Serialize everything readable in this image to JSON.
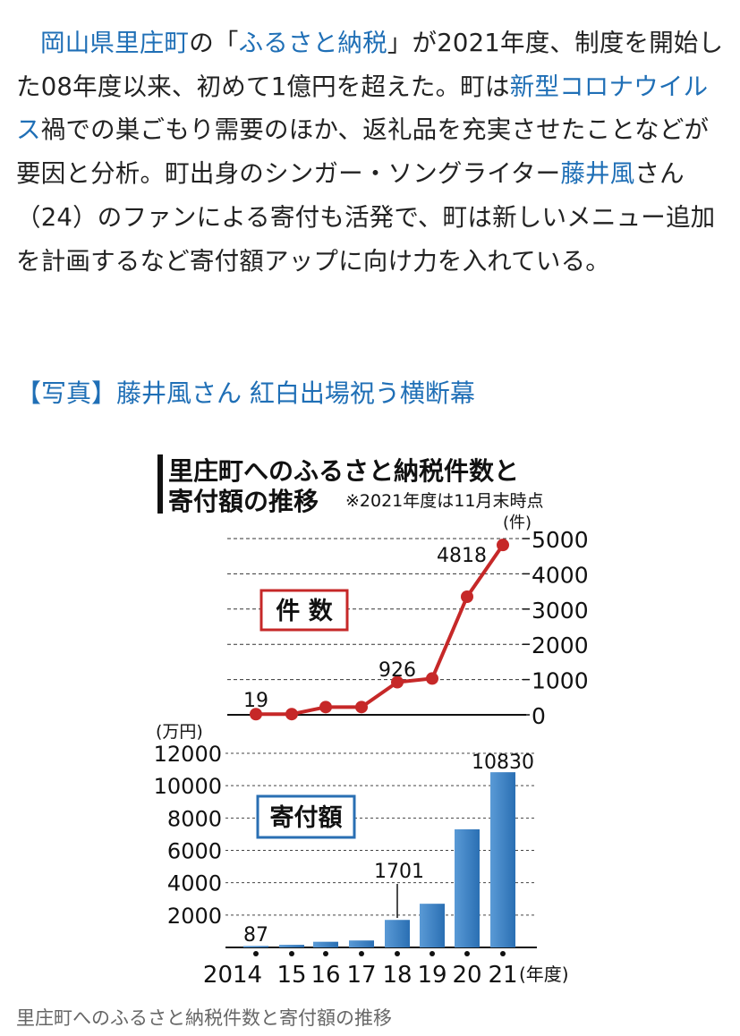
{
  "article": {
    "segments": [
      {
        "t": "岡山県里庄町",
        "link": true
      },
      {
        "t": "の「",
        "link": false
      },
      {
        "t": "ふるさと納税",
        "link": true
      },
      {
        "t": "」が2021年度、制度を開始した08年度以来、初めて1億円を超えた。町は",
        "link": false
      },
      {
        "t": "新型コロナウイルス",
        "link": true
      },
      {
        "t": "禍での巣ごもり需要のほか、返礼品を充実させたことなどが要因と分析。町出身のシンガー・ソングライター",
        "link": false
      },
      {
        "t": "藤井風",
        "link": true
      },
      {
        "t": "さん（24）のファンによる寄付も活発で、町は新しいメニュー追加を計画するなど寄付額アップに向け力を入れている。",
        "link": false
      }
    ],
    "photo_link": "【写真】藤井風さん 紅白出場祝う横断幕"
  },
  "figure": {
    "title_line1": "里庄町へのふるさと納税件数と",
    "title_line2": "寄付額の推移",
    "note": "※2021年度は11月末時点",
    "caption": "里庄町へのふるさと納税件数と寄付額の推移",
    "accent_line": "#c62828",
    "accent_bar": "#2a6fb3"
  },
  "chart_data": [
    {
      "type": "line",
      "label": "件 数",
      "unit": "(件)",
      "x": [
        "2014",
        "15",
        "16",
        "17",
        "18",
        "19",
        "20",
        "21"
      ],
      "values": [
        19,
        20,
        220,
        220,
        926,
        1030,
        3350,
        4818
      ],
      "data_labels": [
        {
          "index": 0,
          "text": "19"
        },
        {
          "index": 4,
          "text": "926"
        },
        {
          "index": 7,
          "text": "4818"
        }
      ],
      "yticks": [
        0,
        1000,
        2000,
        3000,
        4000,
        5000
      ],
      "ylim": [
        0,
        5000
      ],
      "grid": true
    },
    {
      "type": "bar",
      "label": "寄付額",
      "unit": "(万円)",
      "x": [
        "2014",
        "15",
        "16",
        "17",
        "18",
        "19",
        "20",
        "21"
      ],
      "x_unit": "(年度)",
      "values": [
        87,
        160,
        350,
        430,
        1701,
        2700,
        7300,
        10830
      ],
      "data_labels": [
        {
          "index": 0,
          "text": "87"
        },
        {
          "index": 4,
          "text": "1701"
        },
        {
          "index": 7,
          "text": "10830"
        }
      ],
      "yticks": [
        2000,
        4000,
        6000,
        8000,
        10000,
        12000
      ],
      "ylim": [
        0,
        12000
      ],
      "grid": true
    }
  ]
}
